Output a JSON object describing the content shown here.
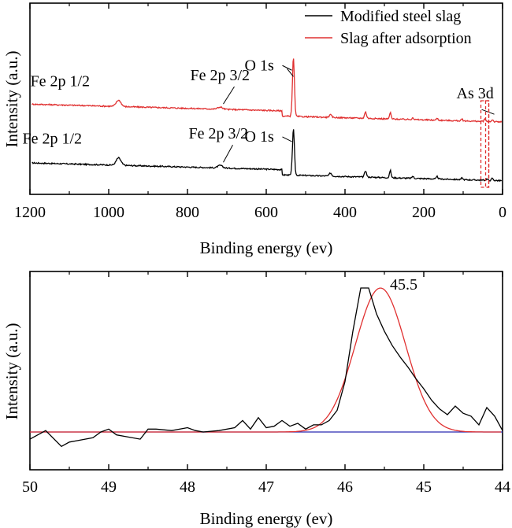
{
  "chart_data": [
    {
      "type": "line",
      "xlabel": "Binding energy (ev)",
      "ylabel": "Intensity (a.u.)",
      "xlim": [
        1200,
        0
      ],
      "x_reversed": true,
      "xticks": [
        1200,
        1000,
        800,
        600,
        400,
        200,
        0
      ],
      "xtick_labels": [
        "1200",
        "1000",
        "800",
        "600",
        "400",
        "200",
        "0"
      ],
      "y_ticks_shown": false,
      "legend_position": "top-right",
      "series": [
        {
          "name": "Modified steel slag",
          "color": "#000000",
          "baseline": 0.0,
          "peaks": [
            [
              975,
              0.035,
              6
            ],
            [
              717,
              0.012,
              6
            ],
            [
              531,
              0.22,
              2.5
            ],
            [
              437,
              0.015,
              3
            ],
            [
              348,
              0.03,
              2.5
            ],
            [
              285,
              0.035,
              2
            ],
            [
              228,
              0.01,
              2
            ],
            [
              166,
              0.012,
              2
            ],
            [
              103,
              0.008,
              2
            ],
            [
              40,
              0.006,
              2
            ],
            [
              26,
              0.01,
              2
            ]
          ]
        },
        {
          "name": "Slag after adsorption",
          "color": "#e03030",
          "baseline": 0.28,
          "peaks": [
            [
              975,
              0.03,
              6
            ],
            [
              717,
              0.01,
              6
            ],
            [
              531,
              0.28,
              2.5
            ],
            [
              437,
              0.012,
              3
            ],
            [
              348,
              0.03,
              2.5
            ],
            [
              285,
              0.03,
              2
            ],
            [
              228,
              0.01,
              2
            ],
            [
              166,
              0.01,
              2
            ],
            [
              103,
              0.008,
              2
            ],
            [
              45,
              0.012,
              2
            ],
            [
              26,
              0.01,
              2
            ]
          ]
        }
      ],
      "annotations": [
        {
          "text": "O 1s",
          "x": 531,
          "series": "Slag after adsorption"
        },
        {
          "text": "Fe 2p 1/2",
          "x": 975,
          "series": "Slag after adsorption"
        },
        {
          "text": "Fe 2p 3/2",
          "x": 717,
          "series": "Slag after adsorption"
        },
        {
          "text": "As 3d",
          "x": 45,
          "series": "Slag after adsorption"
        },
        {
          "text": "O 1s",
          "x": 531,
          "series": "Modified steel slag"
        },
        {
          "text": "Fe 2p 1/2",
          "x": 975,
          "series": "Modified steel slag"
        },
        {
          "text": "Fe 2p 3/2",
          "x": 717,
          "series": "Modified steel slag"
        }
      ],
      "highlight_box": {
        "x_range": [
          55,
          35
        ],
        "color": "#e03030",
        "style": "dashed"
      }
    },
    {
      "type": "line",
      "xlabel": "Binding energy (ev)",
      "ylabel": "Intensity (a.u.)",
      "xlim": [
        50,
        44
      ],
      "x_reversed": true,
      "xticks": [
        50,
        49,
        48,
        47,
        46,
        45,
        44
      ],
      "xtick_labels": [
        "50",
        "49",
        "48",
        "47",
        "46",
        "45",
        "44"
      ],
      "y_ticks_shown": false,
      "series": [
        {
          "name": "",
          "color": "#000000",
          "x": [
            50.0,
            49.8,
            49.6,
            49.5,
            49.4,
            49.2,
            49.1,
            49.0,
            48.9,
            48.8,
            48.6,
            48.5,
            48.4,
            48.2,
            48.0,
            47.9,
            47.8,
            47.6,
            47.4,
            47.3,
            47.2,
            47.1,
            47.0,
            46.9,
            46.8,
            46.7,
            46.6,
            46.5,
            46.4,
            46.3,
            46.2,
            46.1,
            46.0,
            45.9,
            45.8,
            45.7,
            45.6,
            45.5,
            45.4,
            45.3,
            45.2,
            45.1,
            45.0,
            44.9,
            44.8,
            44.7,
            44.6,
            44.5,
            44.4,
            44.3,
            44.2,
            44.1,
            44.0
          ],
          "y": [
            -0.05,
            0.01,
            -0.1,
            -0.07,
            -0.06,
            -0.04,
            0.0,
            0.02,
            -0.02,
            -0.03,
            -0.05,
            0.02,
            0.02,
            0.01,
            0.03,
            0.01,
            0.0,
            0.01,
            0.03,
            0.08,
            0.02,
            0.1,
            0.03,
            0.04,
            0.08,
            0.04,
            0.06,
            0.02,
            0.05,
            0.05,
            0.08,
            0.15,
            0.35,
            0.7,
            1.0,
            1.0,
            0.82,
            0.7,
            0.6,
            0.52,
            0.45,
            0.37,
            0.3,
            0.22,
            0.16,
            0.12,
            0.18,
            0.13,
            0.11,
            0.05,
            0.17,
            0.11,
            0.01
          ]
        },
        {
          "name": "",
          "color": "#e03030",
          "peak_center": 45.55,
          "peak_height": 1.0,
          "peak_fwhm": 0.75
        },
        {
          "name": "",
          "color": "#2b2bb0",
          "x": [
            50,
            44
          ],
          "y": [
            0,
            0
          ]
        }
      ],
      "annotations": [
        {
          "text": "45.5",
          "x": 45.55
        }
      ]
    }
  ]
}
